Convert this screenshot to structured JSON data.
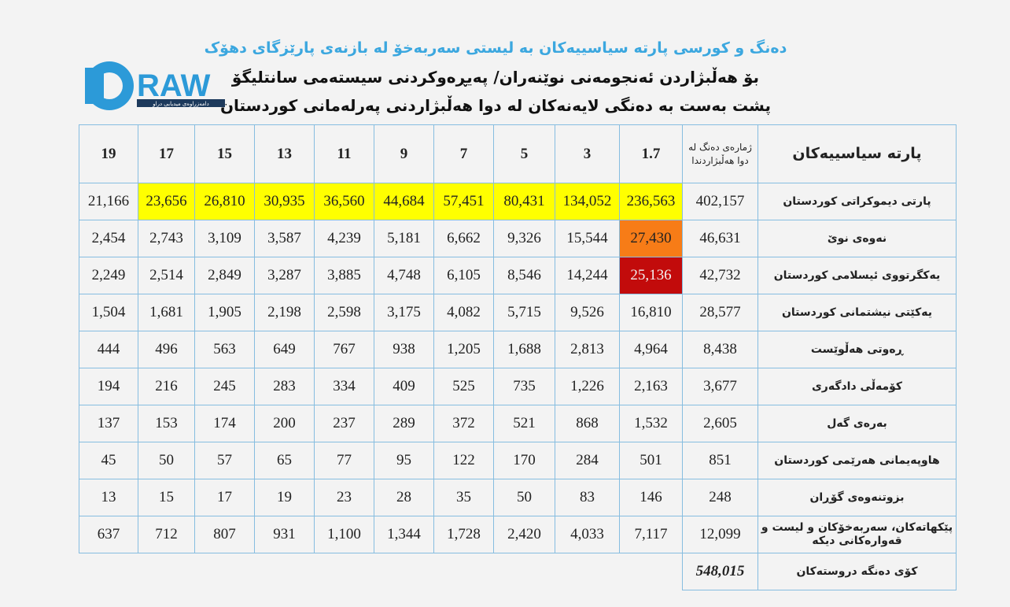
{
  "header": {
    "title": "دەنگ و کورسی پارتە سیاسییەکان بە لیستی سەربەخۆ لە بازنەی پارێزگای  دهۆک",
    "subtitle": "بۆ هەڵبژاردن ئەنجومەنی نوێنەران/ پەیڕەوکردنی سیستەمی سانتلیگۆ",
    "note": "پشت بەست بە دەنگی لایەنەکان لە دوا هەڵبژاردنی پەرلەمانی کوردستان"
  },
  "logo": {
    "name": "RAW",
    "tagline": "دامەزراوەی میدیایی دراو"
  },
  "table": {
    "columns": [
      "پارتە سیاسییەکان",
      "ژمارەی دەنگ لە دوا هەڵبژاردندا",
      "1.7",
      "3",
      "5",
      "7",
      "9",
      "11",
      "13",
      "15",
      "17",
      "19"
    ],
    "rows": [
      [
        "پارتی دیموکراتی کوردستان",
        "402,157",
        "236,563",
        "134,052",
        "80,431",
        "57,451",
        "44,684",
        "36,560",
        "30,935",
        "26,810",
        "23,656",
        "21,166"
      ],
      [
        "نەوەی نوێ",
        "46,631",
        "27,430",
        "15,544",
        "9,326",
        "6,662",
        "5,181",
        "4,239",
        "3,587",
        "3,109",
        "2,743",
        "2,454"
      ],
      [
        "یەکگرتووی ئیسلامی کوردستان",
        "42,732",
        "25,136",
        "14,244",
        "8,546",
        "6,105",
        "4,748",
        "3,885",
        "3,287",
        "2,849",
        "2,514",
        "2,249"
      ],
      [
        "یەکێتی نیشتمانی کوردستان",
        "28,577",
        "16,810",
        "9,526",
        "5,715",
        "4,082",
        "3,175",
        "2,598",
        "2,198",
        "1,905",
        "1,681",
        "1,504"
      ],
      [
        "ڕەوتی هەڵوێست",
        "8,438",
        "4,964",
        "2,813",
        "1,688",
        "1,205",
        "938",
        "767",
        "649",
        "563",
        "496",
        "444"
      ],
      [
        "کۆمەڵی دادگەری",
        "3,677",
        "2,163",
        "1,226",
        "735",
        "525",
        "409",
        "334",
        "283",
        "245",
        "216",
        "194"
      ],
      [
        "بەرەی گەل",
        "2,605",
        "1,532",
        "868",
        "521",
        "372",
        "289",
        "237",
        "200",
        "174",
        "153",
        "137"
      ],
      [
        "هاوپەیمانی هەرێمی کوردستان",
        "851",
        "501",
        "284",
        "170",
        "122",
        "95",
        "77",
        "65",
        "57",
        "50",
        "45"
      ],
      [
        "بزوتنەوەی گۆڕان",
        "248",
        "146",
        "83",
        "50",
        "35",
        "28",
        "23",
        "19",
        "17",
        "15",
        "13"
      ],
      [
        "پێکهاتەکان، سەربەخۆکان و لیست و قەوارەکانی دیکە",
        "12,099",
        "7,117",
        "4,033",
        "2,420",
        "1,728",
        "1,344",
        "1,100",
        "931",
        "807",
        "712",
        "637"
      ]
    ],
    "total": {
      "label": "کۆی دەنگە دروستەکان",
      "value": "548,015"
    }
  }
}
